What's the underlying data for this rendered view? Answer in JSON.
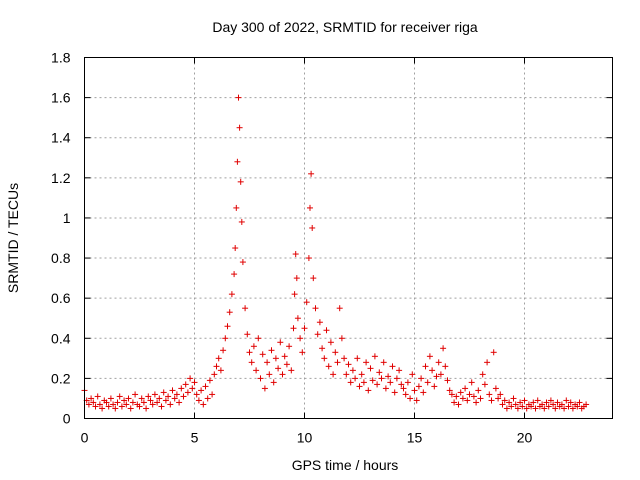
{
  "chart_data": {
    "type": "scatter",
    "title": "Day 300 of 2022, SRMTID for receiver riga",
    "xlabel": "GPS time / hours",
    "ylabel": "SRMTID / TECUs",
    "xlim": [
      0,
      24
    ],
    "ylim": [
      0,
      1.8
    ],
    "xticks": [
      0,
      5,
      10,
      15,
      20
    ],
    "xtick_labels": [
      "0",
      "5",
      "10",
      "15",
      "20"
    ],
    "yticks": [
      0,
      0.2,
      0.4,
      0.6,
      0.8,
      1.0,
      1.2,
      1.4,
      1.6,
      1.8
    ],
    "ytick_labels": [
      "0",
      "0.2",
      "0.4",
      "0.6",
      "0.8",
      "1",
      "1.2",
      "1.4",
      "1.6",
      "1.8"
    ],
    "grid": true,
    "marker": "plus",
    "color": "#e00000",
    "series": [
      {
        "name": "SRMTID",
        "x": [
          0.0,
          0.1,
          0.2,
          0.3,
          0.4,
          0.5,
          0.6,
          0.7,
          0.8,
          0.9,
          1.0,
          1.1,
          1.2,
          1.3,
          1.4,
          1.5,
          1.6,
          1.7,
          1.8,
          1.9,
          2.0,
          2.1,
          2.2,
          2.3,
          2.4,
          2.5,
          2.6,
          2.7,
          2.8,
          2.9,
          3.0,
          3.1,
          3.2,
          3.3,
          3.4,
          3.5,
          3.6,
          3.7,
          3.8,
          3.9,
          4.0,
          4.1,
          4.2,
          4.3,
          4.4,
          4.5,
          4.6,
          4.7,
          4.8,
          4.9,
          5.0,
          5.1,
          5.2,
          5.3,
          5.4,
          5.5,
          5.6,
          5.7,
          5.8,
          5.9,
          6.0,
          6.1,
          6.2,
          6.3,
          6.4,
          6.5,
          6.6,
          6.7,
          6.8,
          6.85,
          6.9,
          6.95,
          7.0,
          7.05,
          7.1,
          7.15,
          7.2,
          7.3,
          7.4,
          7.5,
          7.6,
          7.7,
          7.8,
          7.9,
          8.0,
          8.1,
          8.2,
          8.3,
          8.4,
          8.5,
          8.6,
          8.7,
          8.8,
          8.9,
          9.0,
          9.1,
          9.2,
          9.3,
          9.4,
          9.5,
          9.55,
          9.6,
          9.65,
          9.7,
          9.8,
          9.9,
          10.0,
          10.1,
          10.2,
          10.25,
          10.3,
          10.35,
          10.4,
          10.5,
          10.6,
          10.7,
          10.8,
          10.9,
          11.0,
          11.1,
          11.2,
          11.3,
          11.4,
          11.5,
          11.6,
          11.7,
          11.8,
          11.9,
          12.0,
          12.1,
          12.2,
          12.3,
          12.4,
          12.5,
          12.6,
          12.7,
          12.8,
          12.9,
          13.0,
          13.1,
          13.2,
          13.3,
          13.4,
          13.5,
          13.6,
          13.7,
          13.8,
          13.9,
          14.0,
          14.1,
          14.2,
          14.3,
          14.4,
          14.5,
          14.6,
          14.7,
          14.8,
          14.9,
          15.0,
          15.1,
          15.2,
          15.3,
          15.4,
          15.5,
          15.6,
          15.7,
          15.8,
          15.9,
          16.0,
          16.1,
          16.2,
          16.3,
          16.4,
          16.5,
          16.6,
          16.7,
          16.8,
          16.9,
          17.0,
          17.1,
          17.2,
          17.3,
          17.4,
          17.5,
          17.6,
          17.7,
          17.8,
          17.9,
          18.0,
          18.1,
          18.2,
          18.3,
          18.4,
          18.5,
          18.6,
          18.7,
          18.8,
          18.9,
          19.0,
          19.1,
          19.2,
          19.3,
          19.4,
          19.5,
          19.6,
          19.7,
          19.8,
          19.9,
          20.0,
          20.1,
          20.2,
          20.3,
          20.4,
          20.5,
          20.6,
          20.7,
          20.8,
          20.9,
          21.0,
          21.1,
          21.2,
          21.3,
          21.4,
          21.5,
          21.6,
          21.7,
          21.8,
          21.9,
          22.0,
          22.1,
          22.2,
          22.3,
          22.4,
          22.5,
          22.6,
          22.7,
          22.8
        ],
        "y": [
          0.14,
          0.09,
          0.07,
          0.1,
          0.08,
          0.06,
          0.11,
          0.07,
          0.05,
          0.09,
          0.08,
          0.06,
          0.1,
          0.07,
          0.05,
          0.08,
          0.11,
          0.06,
          0.09,
          0.07,
          0.1,
          0.05,
          0.08,
          0.12,
          0.07,
          0.06,
          0.1,
          0.08,
          0.05,
          0.11,
          0.09,
          0.07,
          0.12,
          0.08,
          0.1,
          0.06,
          0.13,
          0.09,
          0.11,
          0.07,
          0.14,
          0.1,
          0.12,
          0.08,
          0.15,
          0.11,
          0.17,
          0.13,
          0.2,
          0.15,
          0.18,
          0.12,
          0.09,
          0.14,
          0.07,
          0.16,
          0.1,
          0.19,
          0.12,
          0.22,
          0.26,
          0.3,
          0.24,
          0.34,
          0.4,
          0.46,
          0.53,
          0.62,
          0.72,
          0.85,
          1.05,
          1.28,
          1.6,
          1.45,
          1.18,
          0.98,
          0.78,
          0.55,
          0.42,
          0.33,
          0.28,
          0.36,
          0.24,
          0.4,
          0.2,
          0.32,
          0.15,
          0.28,
          0.22,
          0.34,
          0.18,
          0.3,
          0.25,
          0.38,
          0.22,
          0.31,
          0.27,
          0.36,
          0.24,
          0.45,
          0.62,
          0.82,
          0.7,
          0.5,
          0.4,
          0.33,
          0.45,
          0.58,
          0.8,
          1.05,
          1.22,
          0.95,
          0.7,
          0.55,
          0.42,
          0.48,
          0.35,
          0.3,
          0.44,
          0.26,
          0.38,
          0.22,
          0.33,
          0.28,
          0.55,
          0.4,
          0.3,
          0.22,
          0.27,
          0.18,
          0.24,
          0.2,
          0.3,
          0.16,
          0.22,
          0.18,
          0.28,
          0.14,
          0.25,
          0.19,
          0.31,
          0.17,
          0.23,
          0.2,
          0.28,
          0.15,
          0.21,
          0.18,
          0.26,
          0.13,
          0.2,
          0.24,
          0.17,
          0.15,
          0.12,
          0.18,
          0.1,
          0.22,
          0.14,
          0.09,
          0.16,
          0.2,
          0.13,
          0.26,
          0.18,
          0.31,
          0.24,
          0.16,
          0.21,
          0.28,
          0.22,
          0.35,
          0.26,
          0.19,
          0.14,
          0.12,
          0.08,
          0.11,
          0.07,
          0.13,
          0.1,
          0.15,
          0.09,
          0.12,
          0.18,
          0.11,
          0.08,
          0.14,
          0.1,
          0.22,
          0.17,
          0.28,
          0.12,
          0.09,
          0.33,
          0.15,
          0.1,
          0.12,
          0.07,
          0.09,
          0.05,
          0.08,
          0.06,
          0.1,
          0.07,
          0.05,
          0.08,
          0.06,
          0.09,
          0.05,
          0.07,
          0.06,
          0.08,
          0.05,
          0.09,
          0.06,
          0.07,
          0.05,
          0.08,
          0.06,
          0.09,
          0.07,
          0.05,
          0.08,
          0.06,
          0.07,
          0.05,
          0.09,
          0.06,
          0.08,
          0.05,
          0.07,
          0.06,
          0.08,
          0.05,
          0.06,
          0.07
        ]
      }
    ]
  }
}
